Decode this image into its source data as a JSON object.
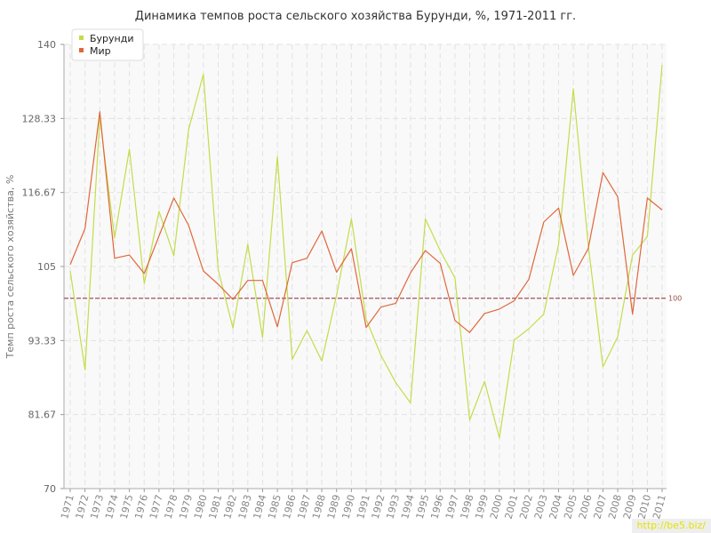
{
  "chart_data": {
    "type": "line",
    "title": "Динамика темпов роста сельского хозяйства Бурунди, %, 1971-2011 гг.",
    "ylabel": "Темп роста сельского хозяйства, %",
    "xlabel": "",
    "ylim": [
      70,
      140
    ],
    "yticks": [
      "70",
      "81.67",
      "93.33",
      "105",
      "116.67",
      "128.33",
      "140"
    ],
    "reference_line": {
      "value": 100,
      "label": "100",
      "color": "#a0505a"
    },
    "grid": true,
    "legend_position": "top-left",
    "categories": [
      "1971",
      "1972",
      "1973",
      "1974",
      "1975",
      "1976",
      "1977",
      "1978",
      "1979",
      "1980",
      "1981",
      "1982",
      "1983",
      "1984",
      "1985",
      "1986",
      "1987",
      "1988",
      "1989",
      "1990",
      "1991",
      "1992",
      "1993",
      "1994",
      "1995",
      "1996",
      "1997",
      "1998",
      "1999",
      "2000",
      "2001",
      "2002",
      "2003",
      "2004",
      "2005",
      "2006",
      "2007",
      "2008",
      "2009",
      "2010",
      "2011"
    ],
    "series": [
      {
        "name": "Бурунди",
        "color": "#c3dd4a",
        "values": [
          104.3,
          88.7,
          128.5,
          109.5,
          123.5,
          102.3,
          113.7,
          106.7,
          126.6,
          135.3,
          104.5,
          95.3,
          108.5,
          93.8,
          122.3,
          90.4,
          94.9,
          90.1,
          100.5,
          112.5,
          96.7,
          91.0,
          86.7,
          83.5,
          112.5,
          107.5,
          103.2,
          80.8,
          86.9,
          78.0,
          93.4,
          95.2,
          97.5,
          108.5,
          133.0,
          108.5,
          89.2,
          93.9,
          106.8,
          109.7,
          136.8
        ]
      },
      {
        "name": "Мир",
        "color": "#e0673a",
        "values": [
          105.3,
          111.0,
          129.4,
          106.3,
          106.8,
          103.9,
          109.8,
          115.8,
          111.5,
          104.3,
          102.2,
          99.8,
          102.8,
          102.8,
          95.5,
          105.6,
          106.3,
          110.6,
          104.1,
          107.8,
          95.4,
          98.6,
          99.2,
          104.0,
          107.5,
          105.5,
          96.5,
          94.6,
          97.6,
          98.3,
          99.6,
          103.0,
          112.0,
          114.2,
          103.6,
          107.8,
          119.8,
          116.0,
          97.5,
          115.8,
          113.9
        ]
      }
    ]
  },
  "watermark": "http://be5.biz/"
}
